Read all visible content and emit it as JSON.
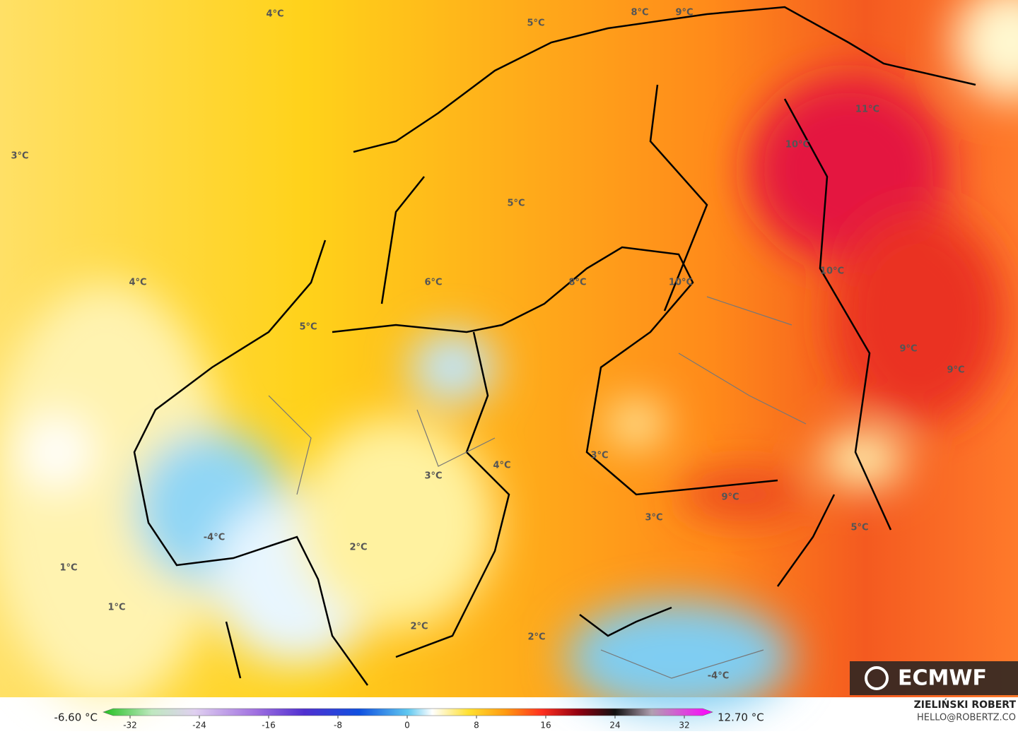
{
  "map": {
    "labels": [
      "4°C",
      "5°C",
      "8°C",
      "9°C",
      "3°C",
      "11°C",
      "10°C",
      "5°C",
      "4°C",
      "6°C",
      "8°C",
      "10°C",
      "10°C",
      "5°C",
      "9°C",
      "9°C",
      "3°C",
      "4°C",
      "9°C",
      "3°C",
      "3°C",
      "5°C",
      "-4°C",
      "2°C",
      "1°C",
      "1°C",
      "2°C",
      "2°C",
      "-4°C"
    ]
  },
  "colorbar": {
    "min_label": "-6.60 °C",
    "max_label": "12.70 °C",
    "ticks": [
      -32,
      -24,
      -16,
      -8,
      0,
      8,
      16,
      24,
      32
    ]
  },
  "branding": {
    "logo": "ECMWF",
    "author": "ZIELIŃSKI ROBERT",
    "email": "HELLO@ROBERTZ.CO"
  }
}
